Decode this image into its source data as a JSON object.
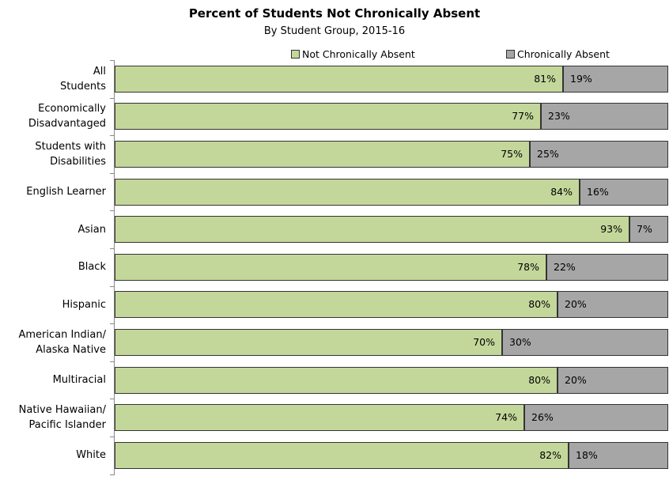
{
  "chart_data": {
    "type": "stacked_barh",
    "title": "Percent of Students Not Chronically Absent",
    "subtitle": "By Student Group, 2015-16",
    "categories": [
      "All\nStudents",
      "Economically\nDisadvantaged",
      "Students with\nDisabilities",
      "English Learner",
      "Asian",
      "Black",
      "Hispanic",
      "American Indian/\nAlaska Native",
      "Multiracial",
      "Native Hawaiian/\nPacific Islander",
      "White"
    ],
    "series": [
      {
        "name": "Not Chronically Absent",
        "color": "#c4d79b",
        "values": [
          81,
          77,
          75,
          84,
          93,
          78,
          80,
          70,
          80,
          74,
          82
        ],
        "value_labels": [
          "81%",
          "77%",
          "75%",
          "84%",
          "93%",
          "78%",
          "80%",
          "70%",
          "80%",
          "74%",
          "82%"
        ]
      },
      {
        "name": "Chronically Absent",
        "color": "#a6a6a6",
        "values": [
          19,
          23,
          25,
          16,
          7,
          22,
          20,
          30,
          20,
          26,
          18
        ],
        "value_labels": [
          "19%",
          "23%",
          "25%",
          "16%",
          "7%",
          "22%",
          "20%",
          "30%",
          "20%",
          "26%",
          "18%"
        ]
      }
    ],
    "xlim": [
      0,
      100
    ],
    "legend": "top"
  }
}
